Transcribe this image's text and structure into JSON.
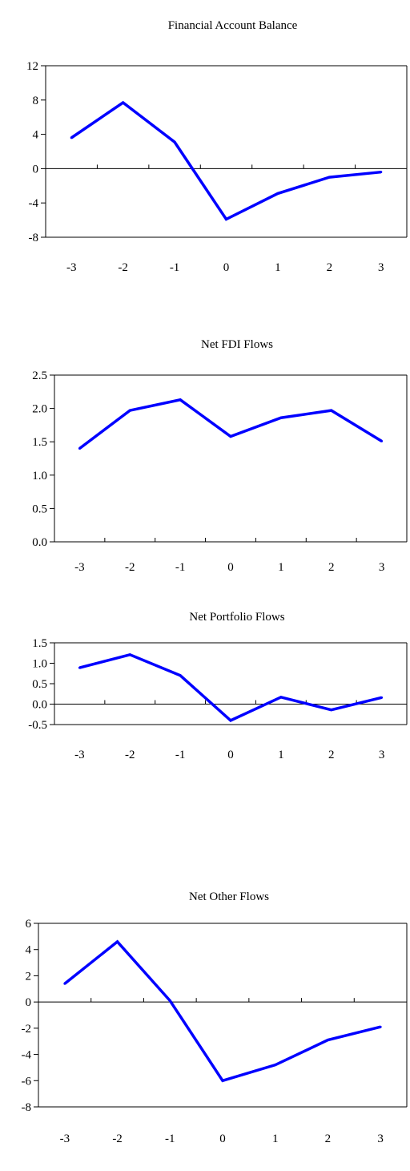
{
  "chart_data": [
    {
      "type": "line",
      "title": "Financial Account Balance",
      "categories": [
        "-3",
        "-2",
        "-1",
        "0",
        "1",
        "2",
        "3"
      ],
      "values": [
        3.6,
        7.7,
        3.1,
        -5.9,
        -2.9,
        -1.0,
        -0.4
      ],
      "ylim": [
        -8,
        12
      ],
      "yticks": [
        "12",
        "8",
        "4",
        "0",
        "-4",
        "-8"
      ],
      "ytick_values": [
        12,
        8,
        4,
        0,
        -4,
        -8
      ],
      "line_color": "#0000ff",
      "grid": false
    },
    {
      "type": "line",
      "title": "Net FDI Flows",
      "categories": [
        "-3",
        "-2",
        "-1",
        "0",
        "1",
        "2",
        "3"
      ],
      "values": [
        1.4,
        1.97,
        2.13,
        1.58,
        1.86,
        1.97,
        1.51
      ],
      "ylim": [
        0,
        2.5
      ],
      "yticks": [
        "2.5",
        "2.0",
        "1.5",
        "1.0",
        "0.5",
        "0.0"
      ],
      "ytick_values": [
        2.5,
        2.0,
        1.5,
        1.0,
        0.5,
        0.0
      ],
      "line_color": "#0000ff",
      "grid": false
    },
    {
      "type": "line",
      "title": "Net Portfolio Flows",
      "categories": [
        "-3",
        "-2",
        "-1",
        "0",
        "1",
        "2",
        "3"
      ],
      "values": [
        0.89,
        1.21,
        0.7,
        -0.4,
        0.17,
        -0.14,
        0.16
      ],
      "ylim": [
        -0.5,
        1.5
      ],
      "yticks": [
        "1.5",
        "1.0",
        "0.5",
        "0.0",
        "-0.5"
      ],
      "ytick_values": [
        1.5,
        1.0,
        0.5,
        0.0,
        -0.5
      ],
      "line_color": "#0000ff",
      "grid": false
    },
    {
      "type": "line",
      "title": "Net Other Flows",
      "categories": [
        "-3",
        "-2",
        "-1",
        "0",
        "1",
        "2",
        "3"
      ],
      "values": [
        1.4,
        4.6,
        0.1,
        -6.0,
        -4.8,
        -2.9,
        -1.9
      ],
      "ylim": [
        -8,
        6
      ],
      "yticks": [
        "6",
        "4",
        "2",
        "0",
        "-2",
        "-4",
        "-6",
        "-8"
      ],
      "ytick_values": [
        6,
        4,
        2,
        0,
        -2,
        -4,
        -6,
        -8
      ],
      "line_color": "#0000ff",
      "grid": false
    }
  ]
}
